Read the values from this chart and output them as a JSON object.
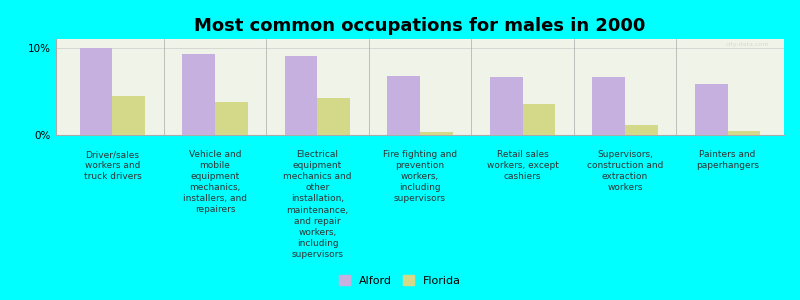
{
  "title": "Most common occupations for males in 2000",
  "categories": [
    "Driver/sales\nworkers and\ntruck drivers",
    "Vehicle and\nmobile\nequipment\nmechanics,\ninstallers, and\nrepairers",
    "Electrical\nequipment\nmechanics and\nother\ninstallation,\nmaintenance,\nand repair\nworkers,\nincluding\nsupervisors",
    "Fire fighting and\nprevention\nworkers,\nincluding\nsupervisors",
    "Retail sales\nworkers, except\ncashiers",
    "Supervisors,\nconstruction and\nextraction\nworkers",
    "Painters and\npaperhangers"
  ],
  "alford_values": [
    10.0,
    9.3,
    9.1,
    6.8,
    6.7,
    6.6,
    5.8
  ],
  "florida_values": [
    4.5,
    3.8,
    4.2,
    0.3,
    3.5,
    1.2,
    0.5
  ],
  "alford_color": "#c5b0e0",
  "florida_color": "#d4d98a",
  "background_color": "#00ffff",
  "plot_bg_color": "#f0f4e8",
  "ylim": [
    0,
    11
  ],
  "ytick_labels": [
    "0%",
    "10%"
  ],
  "bar_width": 0.32,
  "legend_labels": [
    "Alford",
    "Florida"
  ],
  "title_fontsize": 13,
  "label_fontsize": 6.5,
  "legend_fontsize": 8
}
